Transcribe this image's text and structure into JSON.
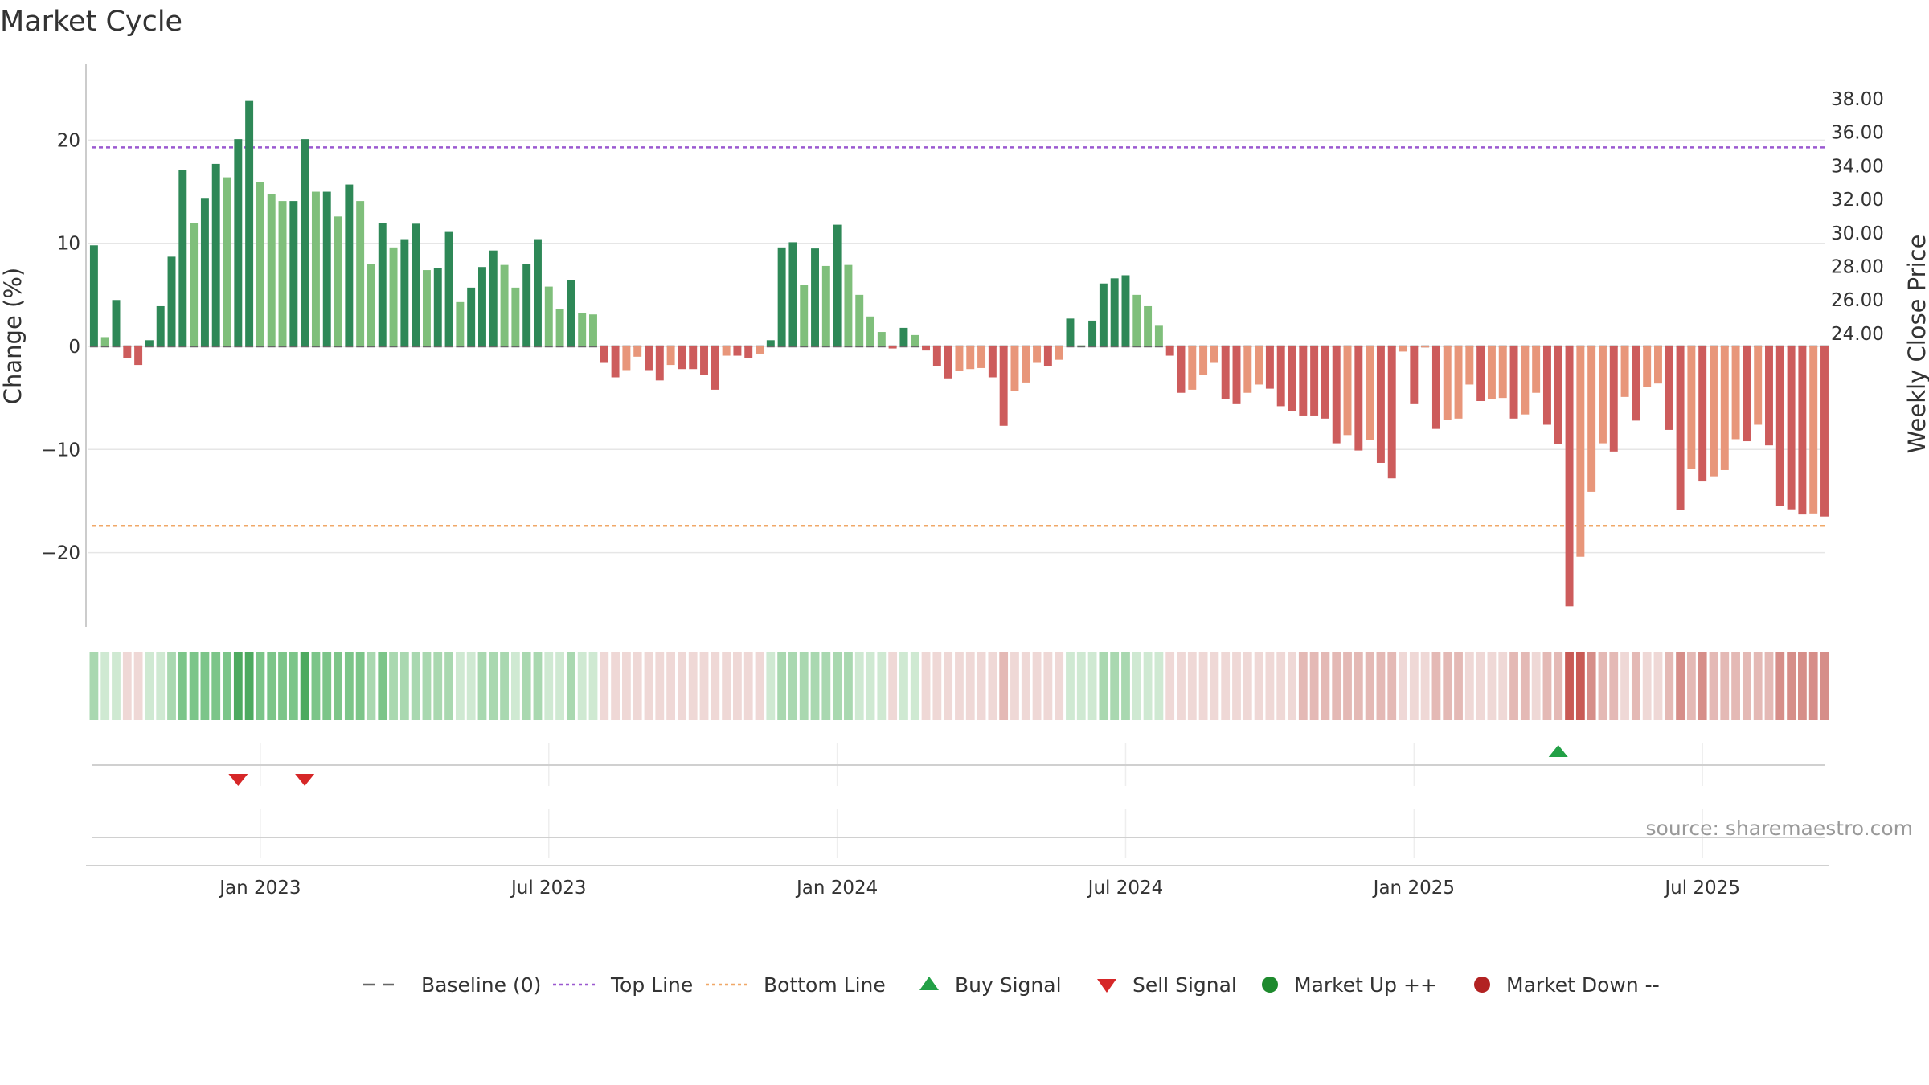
{
  "chart_data": {
    "type": "bar",
    "title": "Market Cycle",
    "ylabel": "Change (%)",
    "y2label": "Weekly Close Price",
    "source": "source: sharemaestro.com",
    "ylim": [
      -27,
      27
    ],
    "y2lim": [
      21.6,
      39.4
    ],
    "yticks": [
      "20",
      "10",
      "0",
      "−10",
      "−20"
    ],
    "y2ticks": [
      "38.00",
      "36.00",
      "34.00",
      "32.00",
      "30.00",
      "28.00",
      "26.00",
      "24.00"
    ],
    "xticks": [
      {
        "label": "Jan 2023",
        "week": 15
      },
      {
        "label": "Jul 2023",
        "week": 41
      },
      {
        "label": "Jan 2024",
        "week": 67
      },
      {
        "label": "Jul 2024",
        "week": 93
      },
      {
        "label": "Jan 2025",
        "week": 119
      },
      {
        "label": "Jul 2025",
        "week": 145
      }
    ],
    "top_line": 19.3,
    "bottom_line": -17.4,
    "baseline": 0,
    "values": [
      9.8,
      0.9,
      4.5,
      -1.1,
      -1.8,
      0.6,
      3.9,
      8.7,
      17.1,
      12,
      14.4,
      17.7,
      16.4,
      20.1,
      23.8,
      15.9,
      14.8,
      14.1,
      14.1,
      20.1,
      15,
      15,
      12.6,
      15.7,
      14.1,
      8,
      12,
      9.6,
      10.4,
      11.9,
      7.4,
      7.6,
      11.1,
      4.3,
      5.7,
      7.7,
      9.3,
      7.9,
      5.7,
      8,
      10.4,
      5.8,
      3.6,
      6.4,
      3.2,
      3.1,
      -1.6,
      -3,
      -2.3,
      -1,
      -2.3,
      -3.3,
      -1.8,
      -2.2,
      -2.2,
      -2.8,
      -4.2,
      -0.9,
      -0.9,
      -1.1,
      -0.7,
      0.6,
      9.6,
      10.1,
      6,
      9.5,
      7.8,
      11.8,
      7.9,
      5,
      2.9,
      1.4,
      -0.2,
      1.8,
      1.1,
      -0.4,
      -1.9,
      -3.1,
      -2.4,
      -2.2,
      -2.1,
      -3,
      -7.7,
      -4.3,
      -3.5,
      -1.6,
      -1.9,
      -1.3,
      2.7,
      0.1,
      2.5,
      6.1,
      6.6,
      6.9,
      5,
      3.9,
      2,
      -0.9,
      -4.5,
      -4.2,
      -2.8,
      -1.6,
      -5.1,
      -5.6,
      -4.5,
      -3.7,
      -4.1,
      -5.8,
      -6.3,
      -6.7,
      -6.7,
      -7,
      -9.4,
      -8.6,
      -10.1,
      -9.1,
      -11.3,
      -12.8,
      -0.5,
      -5.6,
      -0.1,
      -8,
      -7.1,
      -7,
      -3.7,
      -5.3,
      -5.1,
      -5,
      -7,
      -6.6,
      -4.5,
      -7.6,
      -9.5,
      -25.2,
      -20.4,
      -14.1,
      -9.4,
      -10.2,
      -4.9,
      -7.2,
      -3.9,
      -3.6,
      -8.1,
      -15.9,
      -11.9,
      -13.1,
      -12.6,
      -12,
      -9,
      -9.2,
      -7.6,
      -9.6,
      -15.5,
      -15.8,
      -16.3,
      -16.2,
      -16.5
    ],
    "strip": {
      "pos_colors": [
        "#cfe9d2",
        "#a9d8b0",
        "#7cc589",
        "#4daa5f"
      ],
      "neg_colors": [
        "#efd8d6",
        "#e4b9b5",
        "#d68e89",
        "#c95a55"
      ]
    },
    "signals": [
      {
        "type": "sell",
        "week": 13
      },
      {
        "type": "sell",
        "week": 19
      },
      {
        "type": "buy",
        "week": 132
      }
    ],
    "colors": {
      "up_strong": "#2e8857",
      "up_weak": "#7fbf7b",
      "down_strong": "#cd5c5c",
      "down_weak": "#e8967a",
      "top_line": "#9b59d0",
      "bottom_line": "#f0a868",
      "buy": "#22a046",
      "sell": "#d62728",
      "market_up": "#1e8a2e",
      "market_down": "#b22222"
    },
    "legend": [
      {
        "label": "Baseline (0)",
        "kind": "baseline"
      },
      {
        "label": "Top Line",
        "kind": "topline"
      },
      {
        "label": "Bottom Line",
        "kind": "bottomline"
      },
      {
        "label": "Buy Signal",
        "kind": "buy"
      },
      {
        "label": "Sell Signal",
        "kind": "sell"
      },
      {
        "label": "Market Up ++",
        "kind": "up"
      },
      {
        "label": "Market Down --",
        "kind": "down"
      }
    ]
  }
}
